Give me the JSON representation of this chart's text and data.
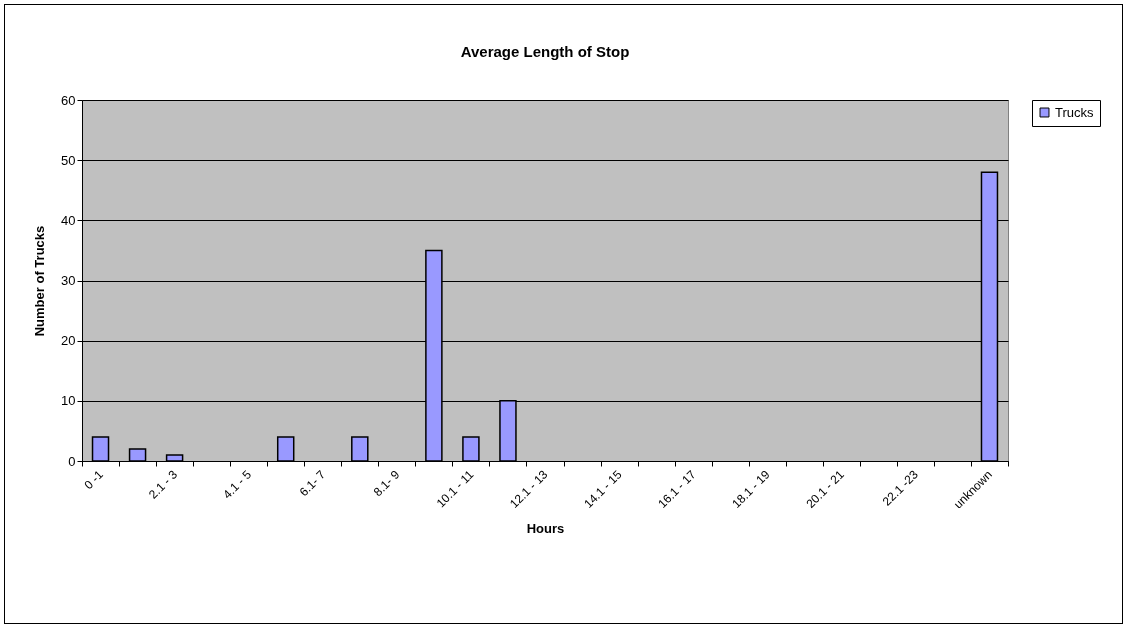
{
  "chart_data": {
    "type": "bar",
    "title": "Average Length of Stop",
    "xlabel": "Hours",
    "ylabel": "Number of Trucks",
    "categories": [
      "0 -1",
      null,
      "2.1 - 3",
      null,
      "4.1 - 5",
      null,
      "6.1- 7",
      null,
      "8.1- 9",
      null,
      "10.1 - 11",
      null,
      "12.1 - 13",
      null,
      "14.1 - 15",
      null,
      "16.1 - 17",
      null,
      "18.1 - 19",
      null,
      "20.1 - 21",
      null,
      "22.1 -23",
      null,
      "unknown"
    ],
    "series": [
      {
        "name": "Trucks",
        "color": "#9999ff",
        "values": [
          4,
          2,
          1,
          0,
          0,
          4,
          0,
          4,
          0,
          35,
          4,
          10,
          0,
          0,
          0,
          0,
          0,
          0,
          0,
          0,
          0,
          0,
          0,
          0,
          48
        ]
      }
    ],
    "ylim": [
      0,
      60
    ],
    "yticks": [
      0,
      10,
      20,
      30,
      40,
      50,
      60
    ],
    "grid": "y",
    "legend": "right"
  }
}
